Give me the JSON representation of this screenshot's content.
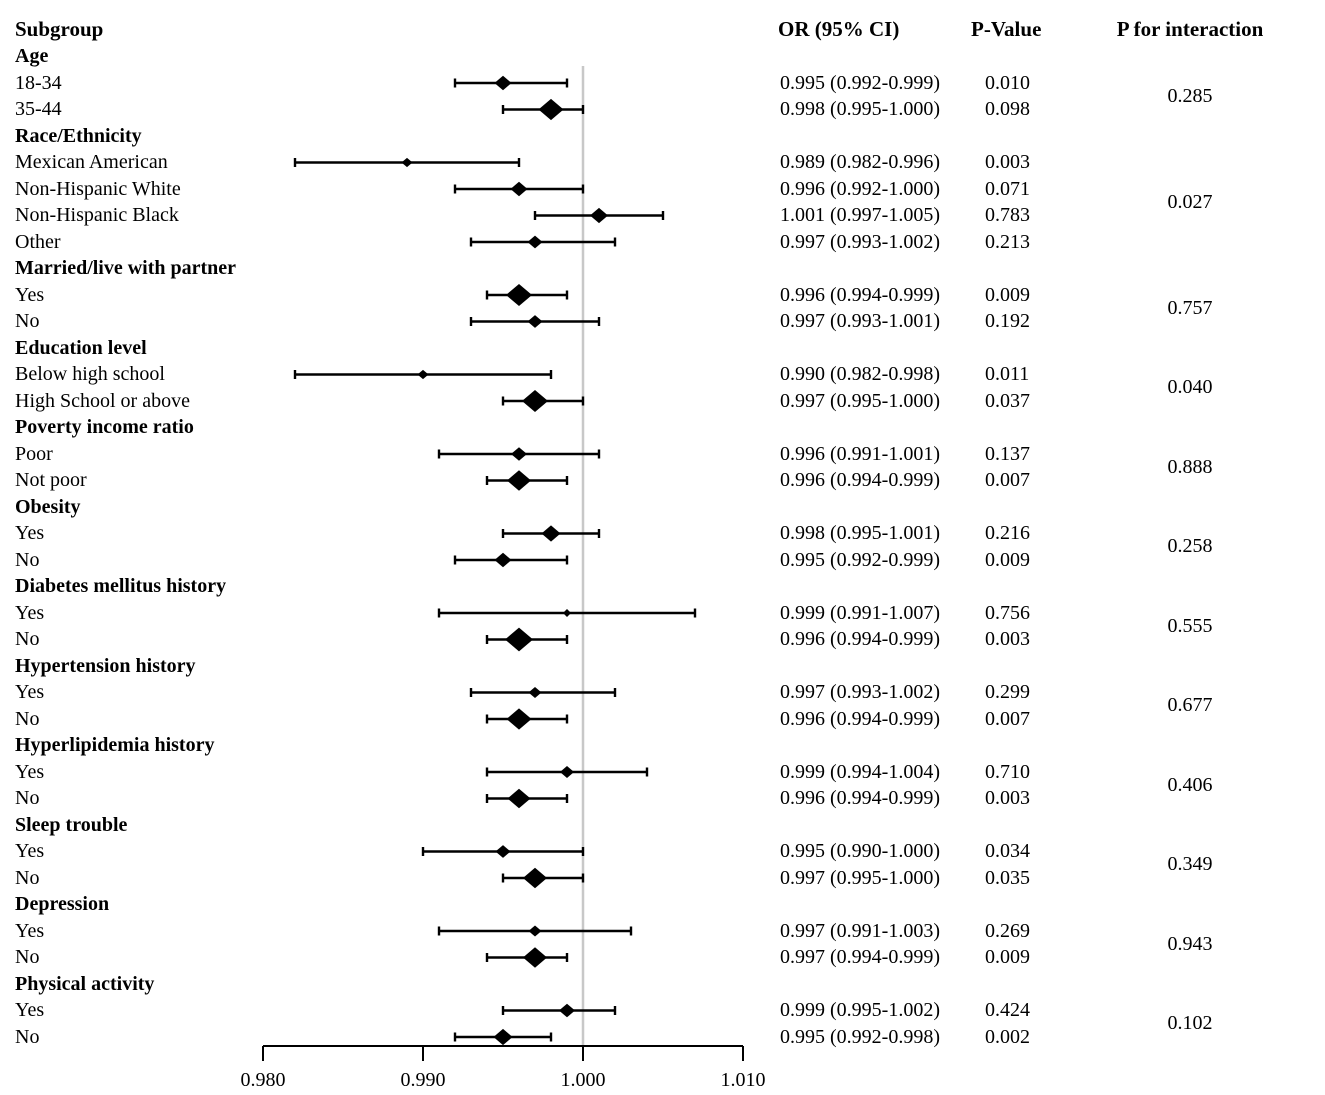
{
  "columns": {
    "subgroup": "Subgroup",
    "or_ci": "OR (95% CI)",
    "p_value": "P-Value",
    "p_interaction": "P for interaction"
  },
  "chart_data": {
    "type": "forest",
    "title": "",
    "xlabel": "",
    "axis": {
      "min": 0.98,
      "max": 1.01,
      "ref_line": 1.0,
      "ticks": [
        0.98,
        0.99,
        1.0,
        1.01
      ],
      "tick_labels": [
        "0.980",
        "0.990",
        "1.000",
        "1.010"
      ]
    },
    "colors": {
      "marker": "#000000",
      "reference_line": "#c8c8c8"
    },
    "groups": [
      {
        "label": "Age",
        "p_interaction": "0.285",
        "rows": [
          {
            "label": "18-34",
            "or": 0.995,
            "ci_low": 0.992,
            "ci_high": 0.999,
            "or_ci": "0.995 (0.992-0.999)",
            "p": "0.010",
            "marker_size": 17
          },
          {
            "label": "35-44",
            "or": 0.998,
            "ci_low": 0.995,
            "ci_high": 1.0,
            "or_ci": "0.998 (0.995-1.000)",
            "p": "0.098",
            "marker_size": 25
          }
        ]
      },
      {
        "label": "Race/Ethnicity",
        "p_interaction": "0.027",
        "rows": [
          {
            "label": "Mexican American",
            "or": 0.989,
            "ci_low": 0.982,
            "ci_high": 0.996,
            "or_ci": "0.989 (0.982-0.996)",
            "p": "0.003",
            "marker_size": 11
          },
          {
            "label": "Non-Hispanic White",
            "or": 0.996,
            "ci_low": 0.992,
            "ci_high": 1.0,
            "or_ci": "0.996 (0.992-1.000)",
            "p": "0.071",
            "marker_size": 17
          },
          {
            "label": "Non-Hispanic Black",
            "or": 1.001,
            "ci_low": 0.997,
            "ci_high": 1.005,
            "or_ci": "1.001 (0.997-1.005)",
            "p": "0.783",
            "marker_size": 18
          },
          {
            "label": "Other",
            "or": 0.997,
            "ci_low": 0.993,
            "ci_high": 1.002,
            "or_ci": "0.997 (0.993-1.002)",
            "p": "0.213",
            "marker_size": 15
          }
        ]
      },
      {
        "label": "Married/live with partner",
        "p_interaction": "0.757",
        "rows": [
          {
            "label": "Yes",
            "or": 0.996,
            "ci_low": 0.994,
            "ci_high": 0.999,
            "or_ci": "0.996 (0.994-0.999)",
            "p": "0.009",
            "marker_size": 26
          },
          {
            "label": "No",
            "or": 0.997,
            "ci_low": 0.993,
            "ci_high": 1.001,
            "or_ci": "0.997 (0.993-1.001)",
            "p": "0.192",
            "marker_size": 15
          }
        ]
      },
      {
        "label": "Education level",
        "p_interaction": "0.040",
        "rows": [
          {
            "label": "Below high school",
            "or": 0.99,
            "ci_low": 0.982,
            "ci_high": 0.998,
            "or_ci": "0.990 (0.982-0.998)",
            "p": "0.011",
            "marker_size": 11
          },
          {
            "label": "High School or above",
            "or": 0.997,
            "ci_low": 0.995,
            "ci_high": 1.0,
            "or_ci": "0.997 (0.995-1.000)",
            "p": "0.037",
            "marker_size": 26
          }
        ]
      },
      {
        "label": "Poverty income ratio",
        "p_interaction": "0.888",
        "rows": [
          {
            "label": "Poor",
            "or": 0.996,
            "ci_low": 0.991,
            "ci_high": 1.001,
            "or_ci": "0.996 (0.991-1.001)",
            "p": "0.137",
            "marker_size": 16
          },
          {
            "label": "Not poor",
            "or": 0.996,
            "ci_low": 0.994,
            "ci_high": 0.999,
            "or_ci": "0.996 (0.994-0.999)",
            "p": "0.007",
            "marker_size": 24
          }
        ]
      },
      {
        "label": "Obesity",
        "p_interaction": "0.258",
        "rows": [
          {
            "label": "Yes",
            "or": 0.998,
            "ci_low": 0.995,
            "ci_high": 1.001,
            "or_ci": "0.998 (0.995-1.001)",
            "p": "0.216",
            "marker_size": 19
          },
          {
            "label": "No",
            "or": 0.995,
            "ci_low": 0.992,
            "ci_high": 0.999,
            "or_ci": "0.995 (0.992-0.999)",
            "p": "0.009",
            "marker_size": 17
          }
        ]
      },
      {
        "label": "Diabetes mellitus history",
        "p_interaction": "0.555",
        "rows": [
          {
            "label": "Yes",
            "or": 0.999,
            "ci_low": 0.991,
            "ci_high": 1.007,
            "or_ci": "0.999 (0.991-1.007)",
            "p": "0.756",
            "marker_size": 8
          },
          {
            "label": "No",
            "or": 0.996,
            "ci_low": 0.994,
            "ci_high": 0.999,
            "or_ci": "0.996 (0.994-0.999)",
            "p": "0.003",
            "marker_size": 28
          }
        ]
      },
      {
        "label": "Hypertension history",
        "p_interaction": "0.677",
        "rows": [
          {
            "label": "Yes",
            "or": 0.997,
            "ci_low": 0.993,
            "ci_high": 1.002,
            "or_ci": "0.997 (0.993-1.002)",
            "p": "0.299",
            "marker_size": 13
          },
          {
            "label": "No",
            "or": 0.996,
            "ci_low": 0.994,
            "ci_high": 0.999,
            "or_ci": "0.996 (0.994-0.999)",
            "p": "0.007",
            "marker_size": 25
          }
        ]
      },
      {
        "label": "Hyperlipidemia history",
        "p_interaction": "0.406",
        "rows": [
          {
            "label": "Yes",
            "or": 0.999,
            "ci_low": 0.994,
            "ci_high": 1.004,
            "or_ci": "0.999 (0.994-1.004)",
            "p": "0.710",
            "marker_size": 14
          },
          {
            "label": "No",
            "or": 0.996,
            "ci_low": 0.994,
            "ci_high": 0.999,
            "or_ci": "0.996 (0.994-0.999)",
            "p": "0.003",
            "marker_size": 23
          }
        ]
      },
      {
        "label": "Sleep trouble",
        "p_interaction": "0.349",
        "rows": [
          {
            "label": "Yes",
            "or": 0.995,
            "ci_low": 0.99,
            "ci_high": 1.0,
            "or_ci": "0.995 (0.990-1.000)",
            "p": "0.034",
            "marker_size": 15
          },
          {
            "label": "No",
            "or": 0.997,
            "ci_low": 0.995,
            "ci_high": 1.0,
            "or_ci": "0.997 (0.995-1.000)",
            "p": "0.035",
            "marker_size": 24
          }
        ]
      },
      {
        "label": "Depression",
        "p_interaction": "0.943",
        "rows": [
          {
            "label": "Yes",
            "or": 0.997,
            "ci_low": 0.991,
            "ci_high": 1.003,
            "or_ci": "0.997 (0.991-1.003)",
            "p": "0.269",
            "marker_size": 13
          },
          {
            "label": "No",
            "or": 0.997,
            "ci_low": 0.994,
            "ci_high": 0.999,
            "or_ci": "0.997 (0.994-0.999)",
            "p": "0.009",
            "marker_size": 24
          }
        ]
      },
      {
        "label": "Physical activity",
        "p_interaction": "0.102",
        "rows": [
          {
            "label": "Yes",
            "or": 0.999,
            "ci_low": 0.995,
            "ci_high": 1.002,
            "or_ci": "0.999 (0.995-1.002)",
            "p": "0.424",
            "marker_size": 16
          },
          {
            "label": "No",
            "or": 0.995,
            "ci_low": 0.992,
            "ci_high": 0.998,
            "or_ci": "0.995 (0.992-0.998)",
            "p": "0.002",
            "marker_size": 19
          }
        ]
      }
    ]
  }
}
